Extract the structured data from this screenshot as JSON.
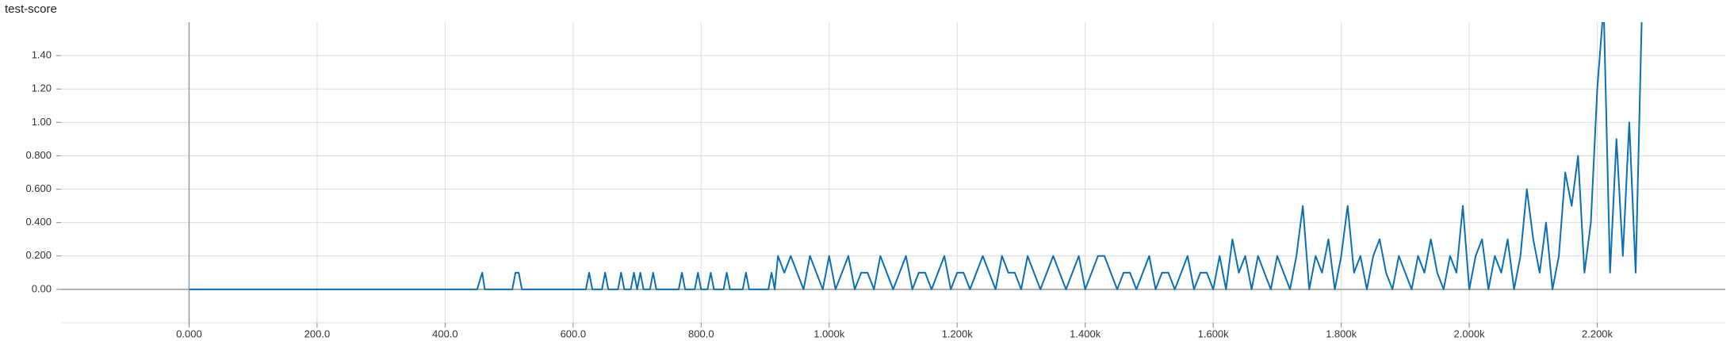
{
  "chart_data": {
    "type": "line",
    "title": "test-score",
    "color": "#0b6fb5",
    "grid": true,
    "xlim": [
      -200,
      2400
    ],
    "ylim": [
      -0.2,
      1.6
    ],
    "xticks": [
      {
        "value": 0,
        "label": "0.000"
      },
      {
        "value": 200,
        "label": "200.0"
      },
      {
        "value": 400,
        "label": "400.0"
      },
      {
        "value": 600,
        "label": "600.0"
      },
      {
        "value": 800,
        "label": "800.0"
      },
      {
        "value": 1000,
        "label": "1.000k"
      },
      {
        "value": 1200,
        "label": "1.200k"
      },
      {
        "value": 1400,
        "label": "1.400k"
      },
      {
        "value": 1600,
        "label": "1.600k"
      },
      {
        "value": 1800,
        "label": "1.800k"
      },
      {
        "value": 2000,
        "label": "2.000k"
      },
      {
        "value": 2200,
        "label": "2.200k"
      }
    ],
    "yticks": [
      {
        "value": 0,
        "label": "0.00"
      },
      {
        "value": 0.2,
        "label": "0.200"
      },
      {
        "value": 0.4,
        "label": "0.400"
      },
      {
        "value": 0.6,
        "label": "0.600"
      },
      {
        "value": 0.8,
        "label": "0.800"
      },
      {
        "value": 1,
        "label": "1.00"
      },
      {
        "value": 1.2,
        "label": "1.20"
      },
      {
        "value": 1.4,
        "label": "1.40"
      }
    ],
    "x": [
      0,
      450,
      458,
      462,
      505,
      510,
      515,
      520,
      620,
      625,
      630,
      645,
      650,
      655,
      670,
      675,
      680,
      690,
      695,
      700,
      705,
      710,
      720,
      725,
      730,
      765,
      770,
      775,
      790,
      795,
      800,
      810,
      815,
      820,
      835,
      840,
      845,
      865,
      870,
      875,
      905,
      910,
      915,
      920,
      930,
      940,
      950,
      960,
      970,
      980,
      990,
      1000,
      1010,
      1020,
      1030,
      1040,
      1050,
      1060,
      1070,
      1080,
      1090,
      1100,
      1110,
      1120,
      1130,
      1140,
      1150,
      1160,
      1170,
      1180,
      1190,
      1200,
      1210,
      1220,
      1230,
      1240,
      1250,
      1260,
      1270,
      1280,
      1290,
      1300,
      1310,
      1320,
      1330,
      1340,
      1350,
      1360,
      1370,
      1380,
      1390,
      1400,
      1410,
      1420,
      1430,
      1440,
      1450,
      1460,
      1470,
      1480,
      1490,
      1500,
      1510,
      1520,
      1530,
      1540,
      1550,
      1560,
      1570,
      1580,
      1590,
      1600,
      1610,
      1620,
      1630,
      1640,
      1650,
      1660,
      1670,
      1680,
      1690,
      1700,
      1710,
      1720,
      1730,
      1740,
      1750,
      1760,
      1770,
      1780,
      1790,
      1800,
      1810,
      1820,
      1830,
      1840,
      1850,
      1860,
      1870,
      1880,
      1890,
      1900,
      1910,
      1920,
      1930,
      1940,
      1950,
      1960,
      1970,
      1980,
      1990,
      2000,
      2010,
      2020,
      2030,
      2040,
      2050,
      2060,
      2070,
      2080,
      2090,
      2100,
      2110,
      2120,
      2130,
      2140,
      2150,
      2160,
      2170,
      2180,
      2190,
      2200,
      2210,
      2220,
      2230,
      2240,
      2250,
      2260,
      2270
    ],
    "values": [
      0,
      0,
      0.1,
      0,
      0,
      0.1,
      0.1,
      0,
      0,
      0.1,
      0,
      0,
      0.1,
      0,
      0,
      0.1,
      0,
      0,
      0.1,
      0,
      0.1,
      0,
      0,
      0.1,
      0,
      0,
      0.1,
      0,
      0,
      0.1,
      0,
      0,
      0.1,
      0,
      0,
      0.1,
      0,
      0,
      0.1,
      0,
      0,
      0.1,
      0,
      0.2,
      0.1,
      0.2,
      0.1,
      0,
      0.2,
      0.1,
      0,
      0.2,
      0,
      0.1,
      0.2,
      0,
      0.1,
      0.1,
      0,
      0.2,
      0.1,
      0,
      0.1,
      0.2,
      0,
      0.1,
      0.1,
      0,
      0.1,
      0.2,
      0,
      0.1,
      0.1,
      0,
      0.1,
      0.2,
      0.1,
      0,
      0.2,
      0.1,
      0.1,
      0,
      0.2,
      0.1,
      0,
      0.1,
      0.2,
      0.1,
      0,
      0.1,
      0.2,
      0,
      0.1,
      0.2,
      0.2,
      0.1,
      0,
      0.1,
      0.1,
      0,
      0.1,
      0.2,
      0,
      0.1,
      0.1,
      0,
      0.1,
      0.2,
      0,
      0.1,
      0.1,
      0,
      0.2,
      0,
      0.3,
      0.1,
      0.2,
      0,
      0.2,
      0.1,
      0,
      0.2,
      0.1,
      0,
      0.2,
      0.5,
      0,
      0.2,
      0.1,
      0.3,
      0,
      0.2,
      0.5,
      0.1,
      0.2,
      0,
      0.2,
      0.3,
      0.1,
      0,
      0.2,
      0.1,
      0,
      0.2,
      0.1,
      0.3,
      0.1,
      0,
      0.2,
      0.1,
      0.5,
      0,
      0.2,
      0.3,
      0,
      0.2,
      0.1,
      0.3,
      0,
      0.2,
      0.6,
      0.3,
      0.1,
      0.4,
      0,
      0.2,
      0.7,
      0.5,
      0.8,
      0.1,
      0.4,
      1.2,
      1.7,
      0.1,
      0.9,
      0.2,
      1.0,
      0.1,
      1.7
    ]
  }
}
